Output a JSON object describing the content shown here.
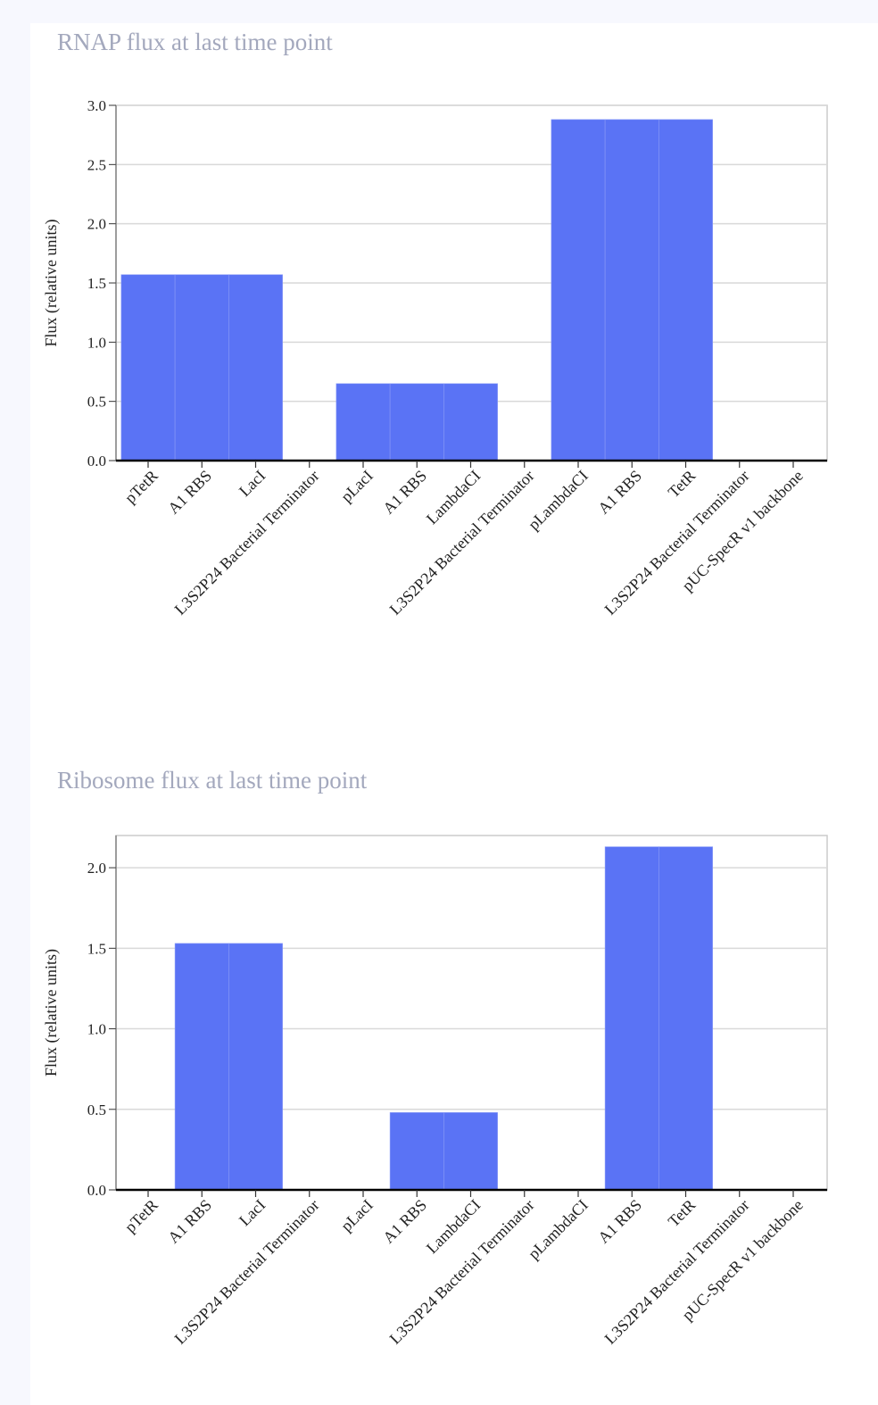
{
  "charts": [
    {
      "title": "RNAP flux at last time point"
    },
    {
      "title": "Ribosome flux at last time point"
    }
  ],
  "colors": {
    "bar": "#5a73f5",
    "grid": "#d9d9d9",
    "axis": "#000000",
    "frame": "#cccccc"
  },
  "chart_data": [
    {
      "type": "bar",
      "title": "RNAP flux at last time point",
      "xlabel": "",
      "ylabel": "Flux (relative units)",
      "ylim": [
        0,
        3.0
      ],
      "yticks": [
        "0.0",
        "0.5",
        "1.0",
        "1.5",
        "2.0",
        "2.5",
        "3.0"
      ],
      "grid": true,
      "categories": [
        "pTetR",
        "A1 RBS",
        "LacI",
        "L3S2P24 Bacterial Terminator",
        "pLacI",
        "A1 RBS",
        "LambdaCI",
        "L3S2P24 Bacterial Terminator",
        "pLambdaCI",
        "A1 RBS",
        "TetR",
        "L3S2P24 Bacterial Terminator",
        "pUC-SpecR v1 backbone"
      ],
      "values": [
        1.57,
        1.57,
        1.57,
        0,
        0.65,
        0.65,
        0.65,
        0,
        2.88,
        2.88,
        2.88,
        0,
        0
      ]
    },
    {
      "type": "bar",
      "title": "Ribosome flux at last time point",
      "xlabel": "",
      "ylabel": "Flux (relative units)",
      "ylim": [
        0,
        2.2
      ],
      "yticks": [
        "0.0",
        "0.5",
        "1.0",
        "1.5",
        "2.0"
      ],
      "grid": true,
      "categories": [
        "pTetR",
        "A1 RBS",
        "LacI",
        "L3S2P24 Bacterial Terminator",
        "pLacI",
        "A1 RBS",
        "LambdaCI",
        "L3S2P24 Bacterial Terminator",
        "pLambdaCI",
        "A1 RBS",
        "TetR",
        "L3S2P24 Bacterial Terminator",
        "pUC-SpecR v1 backbone"
      ],
      "values": [
        0,
        1.53,
        1.53,
        0,
        0,
        0.48,
        0.48,
        0,
        0,
        2.13,
        2.13,
        0,
        0
      ]
    }
  ]
}
